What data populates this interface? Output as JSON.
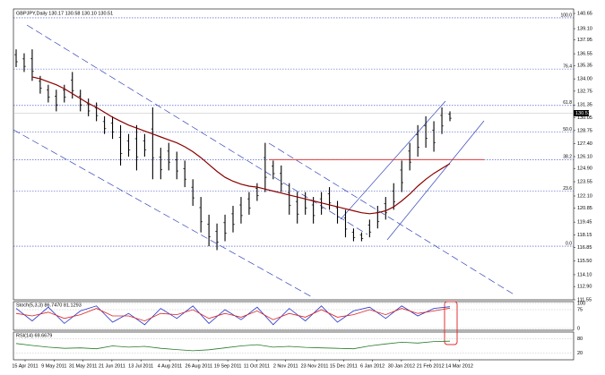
{
  "chart_data": {
    "type": "ohlc",
    "title": "GBPJPY,Daily  130.17 130.58 130.10 130.51",
    "x_labels": [
      "15 Apr 2011",
      "9 May 2011",
      "31 May 2011",
      "21 Jun 2011",
      "13 Jul 2011",
      "4 Aug 2011",
      "26 Aug 2011",
      "19 Sep 2011",
      "11 Oct 2011",
      "2 Nov 2011",
      "23 Nov 2011",
      "15 Dec 2011",
      "6 Jan 2012",
      "30 Jan 2012",
      "21 Feb 2012",
      "14 Mar 2012"
    ],
    "highs": [
      137.0,
      136.6,
      137.0,
      134.3,
      133.4,
      132.9,
      133.4,
      134.7,
      132.9,
      132.0,
      131.6,
      130.2,
      130.2,
      129.3,
      128.4,
      129.3,
      128.4,
      131.1,
      127.0,
      127.5,
      126.6,
      125.7,
      123.8,
      122.0,
      120.2,
      119.3,
      120.2,
      121.1,
      122.0,
      122.5,
      123.4,
      127.5,
      125.7,
      125.2,
      123.4,
      122.5,
      122.5,
      122.0,
      122.5,
      123.0,
      121.6,
      120.7,
      118.8,
      118.4,
      119.7,
      121.1,
      122.0,
      123.4,
      125.7,
      127.5,
      129.3,
      130.2,
      129.7,
      131.1,
      130.7
    ],
    "lows": [
      135.2,
      134.7,
      133.8,
      132.5,
      131.6,
      130.7,
      131.6,
      132.0,
      130.7,
      130.2,
      129.7,
      128.4,
      127.9,
      125.2,
      126.1,
      124.7,
      126.1,
      123.8,
      123.8,
      124.7,
      123.8,
      123.0,
      121.1,
      118.4,
      117.0,
      116.6,
      117.5,
      118.4,
      119.3,
      120.2,
      121.6,
      122.5,
      123.8,
      122.5,
      120.2,
      119.3,
      120.2,
      119.3,
      120.2,
      120.7,
      119.3,
      117.9,
      117.5,
      117.5,
      117.9,
      118.8,
      119.7,
      120.7,
      122.5,
      124.7,
      126.1,
      127.0,
      126.6,
      128.4,
      129.7
    ],
    "ma": [
      null,
      null,
      134.2,
      134.0,
      133.7,
      133.4,
      133.0,
      132.5,
      132.0,
      131.5,
      131.1,
      130.6,
      130.1,
      129.7,
      129.3,
      129.0,
      128.7,
      128.4,
      128.1,
      127.8,
      127.5,
      127.1,
      126.6,
      126.0,
      125.3,
      124.6,
      124.0,
      123.6,
      123.3,
      123.1,
      123.0,
      122.8,
      122.6,
      122.4,
      122.2,
      122.0,
      121.8,
      121.6,
      121.4,
      121.2,
      121.0,
      120.8,
      120.6,
      120.4,
      120.3,
      120.4,
      120.6,
      121.0,
      121.6,
      122.3,
      123.1,
      123.8,
      124.4,
      124.9,
      125.4
    ],
    "ylim": [
      111.55,
      140.65
    ],
    "yticks": [
      140.65,
      {
        "value": 139.1,
        "label": "139.10"
      },
      137.95,
      136.55,
      135.35,
      {
        "value": 134,
        "label": "134.00"
      },
      132.75,
      131.35,
      130.05,
      128.75,
      {
        "value": 127.4,
        "label": "127.40"
      },
      {
        "value": 126.1,
        "label": "126.10"
      },
      {
        "value": 124.9,
        "label": "124.90"
      },
      123.55,
      {
        "value": 122.1,
        "label": "122.10"
      },
      120.85,
      119.45,
      118.15,
      116.85,
      {
        "value": 115.5,
        "label": "115.50"
      },
      {
        "value": 114.1,
        "label": "114.10"
      },
      {
        "value": 112.9,
        "label": "112.90"
      },
      111.55
    ],
    "fib_levels": [
      {
        "label": "100.0",
        "value": 140.2
      },
      {
        "label": "76.4",
        "value": 135.0
      },
      {
        "label": "61.8",
        "value": 131.3
      },
      {
        "label": "50.0",
        "value": 128.6
      },
      {
        "label": "38.2",
        "value": 125.8
      },
      {
        "label": "23.6",
        "value": 122.6
      },
      {
        "label": "0.0",
        "value": 117.0
      }
    ],
    "resistance": 125.8,
    "last_price": 130.51,
    "stoch": {
      "title": "Stoch(5,3,3) 86.7470 81.1293",
      "ylim": [
        0,
        100
      ],
      "yticks": [
        100,
        75,
        0
      ],
      "main": [
        80,
        30,
        85,
        20,
        70,
        90,
        25,
        60,
        15,
        80,
        40,
        90,
        20,
        75,
        35,
        85,
        15,
        80,
        30,
        90,
        25,
        70,
        85,
        40,
        90,
        50,
        80,
        86.7
      ],
      "signal": [
        60,
        50,
        65,
        40,
        55,
        80,
        50,
        50,
        30,
        60,
        55,
        75,
        40,
        60,
        45,
        70,
        35,
        60,
        45,
        75,
        45,
        55,
        75,
        55,
        80,
        60,
        70,
        81.1
      ]
    },
    "rsi": {
      "title": "RSI(14) 69.6679",
      "ylim": [
        0,
        100
      ],
      "yticks": [
        80,
        20
      ],
      "values": [
        60,
        52,
        45,
        40,
        42,
        38,
        50,
        45,
        48,
        40,
        35,
        30,
        34,
        42,
        50,
        55,
        45,
        48,
        44,
        42,
        40,
        38,
        50,
        58,
        65,
        62,
        68,
        69.7
      ]
    }
  }
}
